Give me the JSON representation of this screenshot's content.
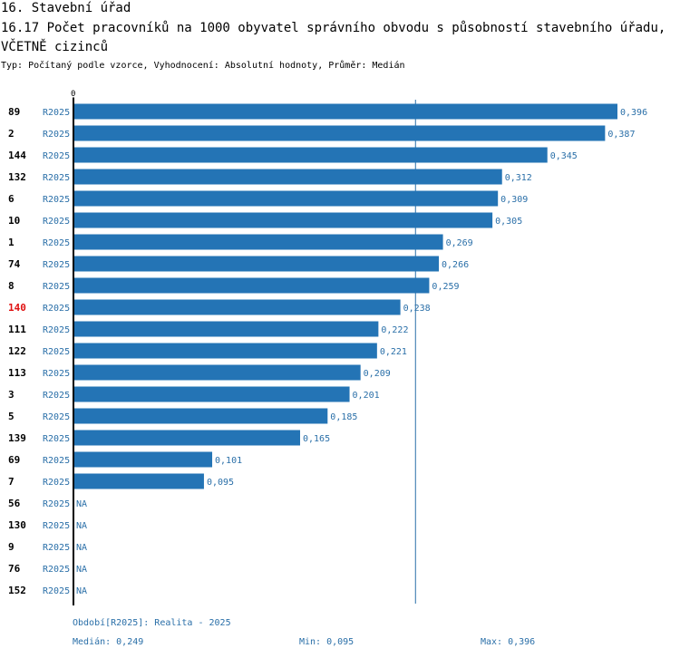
{
  "header": {
    "section": "16. Stavební úřad",
    "title": "16.17 Počet pracovníků na 1000 obyvatel správního obvodu s působností stavebního úřadu, VČETNĚ cizinců",
    "subtitle": "Typ: Počítaný podle vzorce, Vyhodnocení: Absolutní hodnoty, Průměr: Medián"
  },
  "colors": {
    "bar": "#2474b5",
    "value_text": "#2a6fa8",
    "label_text": "#000000",
    "highlight_text": "#e01010",
    "axis": "#000000",
    "median_line": "#2a6fa8"
  },
  "chart_data": {
    "type": "bar",
    "orientation": "horizontal",
    "axis_tick_label": "0",
    "xlim": [
      0,
      0.396
    ],
    "median": 0.249,
    "highlight_category": "140",
    "rows": [
      {
        "category": "89",
        "period": "R2025",
        "value": 0.396,
        "label": "0,396"
      },
      {
        "category": "2",
        "period": "R2025",
        "value": 0.387,
        "label": "0,387"
      },
      {
        "category": "144",
        "period": "R2025",
        "value": 0.345,
        "label": "0,345"
      },
      {
        "category": "132",
        "period": "R2025",
        "value": 0.312,
        "label": "0,312"
      },
      {
        "category": "6",
        "period": "R2025",
        "value": 0.309,
        "label": "0,309"
      },
      {
        "category": "10",
        "period": "R2025",
        "value": 0.305,
        "label": "0,305"
      },
      {
        "category": "1",
        "period": "R2025",
        "value": 0.269,
        "label": "0,269"
      },
      {
        "category": "74",
        "period": "R2025",
        "value": 0.266,
        "label": "0,266"
      },
      {
        "category": "8",
        "period": "R2025",
        "value": 0.259,
        "label": "0,259"
      },
      {
        "category": "140",
        "period": "R2025",
        "value": 0.238,
        "label": "0,238"
      },
      {
        "category": "111",
        "period": "R2025",
        "value": 0.222,
        "label": "0,222"
      },
      {
        "category": "122",
        "period": "R2025",
        "value": 0.221,
        "label": "0,221"
      },
      {
        "category": "113",
        "period": "R2025",
        "value": 0.209,
        "label": "0,209"
      },
      {
        "category": "3",
        "period": "R2025",
        "value": 0.201,
        "label": "0,201"
      },
      {
        "category": "5",
        "period": "R2025",
        "value": 0.185,
        "label": "0,185"
      },
      {
        "category": "139",
        "period": "R2025",
        "value": 0.165,
        "label": "0,165"
      },
      {
        "category": "69",
        "period": "R2025",
        "value": 0.101,
        "label": "0,101"
      },
      {
        "category": "7",
        "period": "R2025",
        "value": 0.095,
        "label": "0,095"
      },
      {
        "category": "56",
        "period": "R2025",
        "value": null,
        "label": "NA"
      },
      {
        "category": "130",
        "period": "R2025",
        "value": null,
        "label": "NA"
      },
      {
        "category": "9",
        "period": "R2025",
        "value": null,
        "label": "NA"
      },
      {
        "category": "76",
        "period": "R2025",
        "value": null,
        "label": "NA"
      },
      {
        "category": "152",
        "period": "R2025",
        "value": null,
        "label": "NA"
      }
    ]
  },
  "footer": {
    "period_text": "Období[R2025]: Realita - 2025",
    "median_text": "Medián: 0,249",
    "min_text": "Min: 0,095",
    "max_text": "Max: 0,396"
  }
}
